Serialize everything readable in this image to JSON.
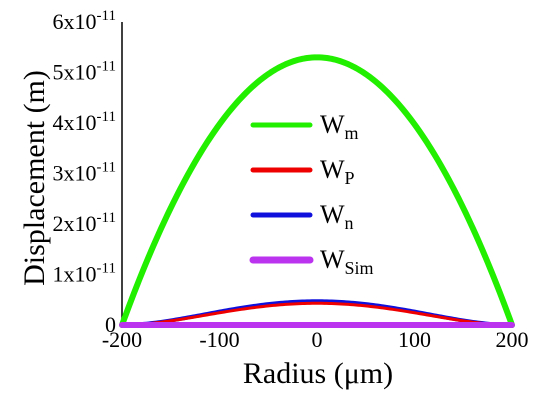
{
  "chart_data": {
    "type": "line",
    "xlabel": "Radius (μm)",
    "ylabel": "Displacement (m)",
    "xlim": [
      -200,
      200
    ],
    "ylim": [
      0,
      6e-11
    ],
    "x_ticks": [
      {
        "value": -200,
        "label": "-200"
      },
      {
        "value": -100,
        "label": "-100"
      },
      {
        "value": 0,
        "label": "0"
      },
      {
        "value": 100,
        "label": "100"
      },
      {
        "value": 200,
        "label": "200"
      }
    ],
    "y_ticks": [
      {
        "value": 0,
        "base": "0",
        "exp": ""
      },
      {
        "value": 1e-11,
        "base": "1x10",
        "exp": "-11"
      },
      {
        "value": 2e-11,
        "base": "2x10",
        "exp": "-11"
      },
      {
        "value": 3e-11,
        "base": "3x10",
        "exp": "-11"
      },
      {
        "value": 4e-11,
        "base": "4x10",
        "exp": "-11"
      },
      {
        "value": 5e-11,
        "base": "5x10",
        "exp": "-11"
      },
      {
        "value": 6e-11,
        "base": "6x10",
        "exp": "-11"
      }
    ],
    "grid": false,
    "legend_position": "center",
    "series": [
      {
        "name": "Wm",
        "base": "W",
        "sub": "m",
        "color": "#22ee00",
        "shape": "parabola",
        "peak": 5.3e-11
      },
      {
        "name": "WP",
        "base": "W",
        "sub": "P",
        "color": "#ee0000",
        "shape": "bell",
        "peak": 4.3e-12
      },
      {
        "name": "Wn",
        "base": "W",
        "sub": "n",
        "color": "#1010dd",
        "shape": "bell",
        "peak": 4.7e-12
      },
      {
        "name": "WSim",
        "base": "W",
        "sub": "Sim",
        "color": "#bb33ee",
        "shape": "flat",
        "peak": 0.0
      }
    ]
  }
}
